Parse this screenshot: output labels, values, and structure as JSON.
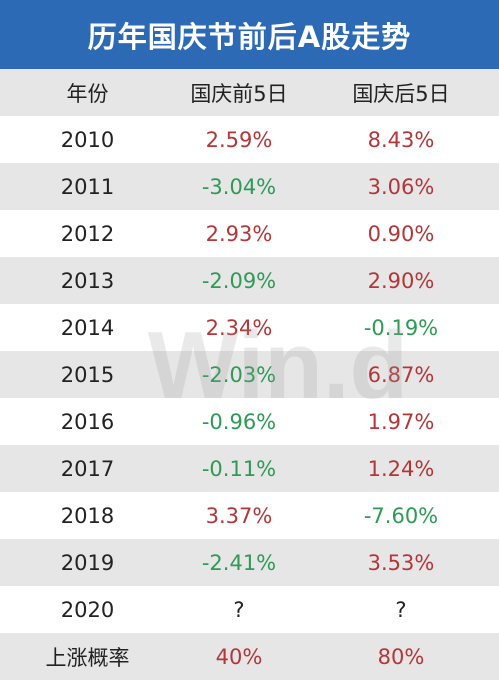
{
  "title": "历年国庆节前后A股走势",
  "watermark_text": "Win.d",
  "colors": {
    "header_bg": "#2d6ab6",
    "positive": "#b33638",
    "negative": "#2e9a55",
    "alt_row": "#e6e6e6"
  },
  "chart_data": {
    "type": "table",
    "title": "历年国庆节前后A股走势",
    "columns": [
      "年份",
      "国庆前5日",
      "国庆后5日"
    ],
    "rows": [
      {
        "year": "2010",
        "before": "2.59%",
        "after": "8.43%"
      },
      {
        "year": "2011",
        "before": "-3.04%",
        "after": "3.06%"
      },
      {
        "year": "2012",
        "before": "2.93%",
        "after": "0.90%"
      },
      {
        "year": "2013",
        "before": "-2.09%",
        "after": "2.90%"
      },
      {
        "year": "2014",
        "before": "2.34%",
        "after": "-0.19%"
      },
      {
        "year": "2015",
        "before": "-2.03%",
        "after": "6.87%"
      },
      {
        "year": "2016",
        "before": "-0.96%",
        "after": "1.97%"
      },
      {
        "year": "2017",
        "before": "-0.11%",
        "after": "1.24%"
      },
      {
        "year": "2018",
        "before": "3.37%",
        "after": "-7.60%"
      },
      {
        "year": "2019",
        "before": "-2.41%",
        "after": "3.53%"
      },
      {
        "year": "2020",
        "before": "?",
        "after": "?"
      }
    ],
    "summary": {
      "label": "上涨概率",
      "before": "40%",
      "after": "80%"
    }
  }
}
